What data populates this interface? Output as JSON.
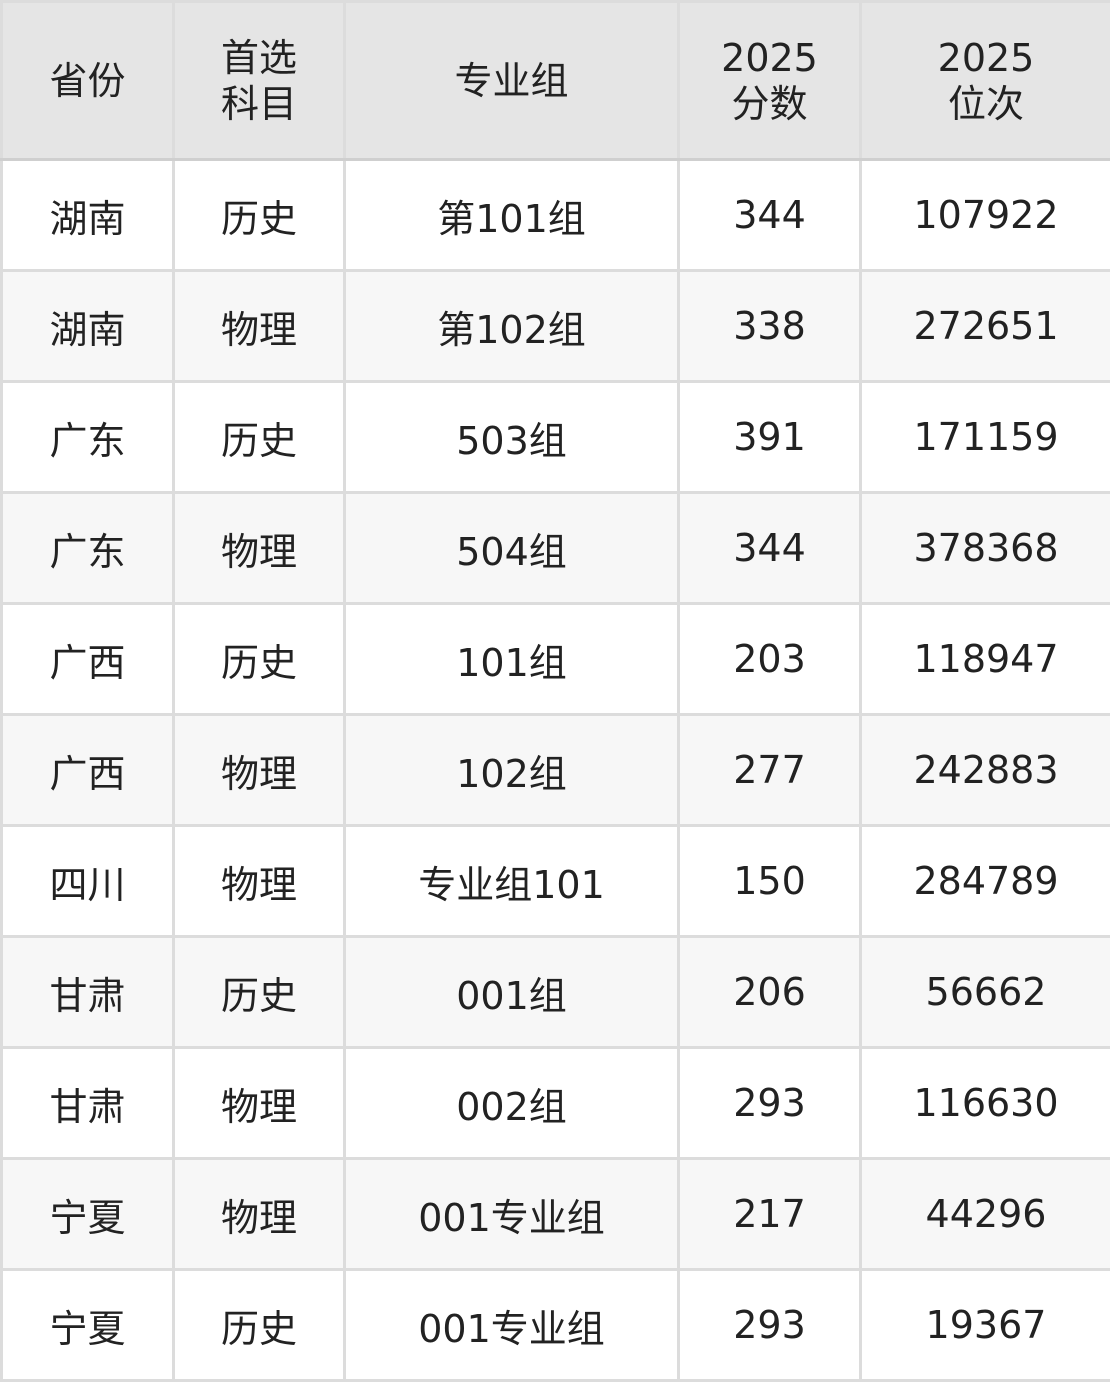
{
  "table": {
    "headers": [
      {
        "line1": "省份",
        "line2": ""
      },
      {
        "line1": "首选",
        "line2": "科目"
      },
      {
        "line1": "专业组",
        "line2": ""
      },
      {
        "line1": "2025",
        "line2": "分数"
      },
      {
        "line1": "2025",
        "line2": "位次"
      }
    ],
    "rows": [
      [
        "湖南",
        "历史",
        "第101组",
        "344",
        "107922"
      ],
      [
        "湖南",
        "物理",
        "第102组",
        "338",
        "272651"
      ],
      [
        "广东",
        "历史",
        "503组",
        "391",
        "171159"
      ],
      [
        "广东",
        "物理",
        "504组",
        "344",
        "378368"
      ],
      [
        "广西",
        "历史",
        "101组",
        "203",
        "118947"
      ],
      [
        "广西",
        "物理",
        "102组",
        "277",
        "242883"
      ],
      [
        "四川",
        "物理",
        "专业组101",
        "150",
        "284789"
      ],
      [
        "甘肃",
        "历史",
        "001组",
        "206",
        "56662"
      ],
      [
        "甘肃",
        "物理",
        "002组",
        "293",
        "116630"
      ],
      [
        "宁夏",
        "物理",
        "001专业组",
        "217",
        "44296"
      ],
      [
        "宁夏",
        "历史",
        "001专业组",
        "293",
        "19367"
      ]
    ]
  }
}
